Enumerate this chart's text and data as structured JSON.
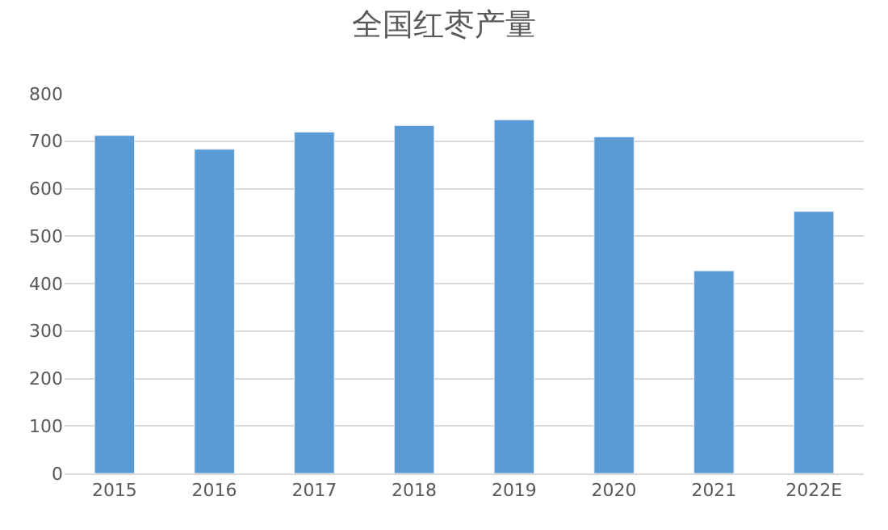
{
  "chart_data": {
    "type": "bar",
    "title": "全国红枣产量",
    "categories": [
      "2015",
      "2016",
      "2017",
      "2018",
      "2019",
      "2020",
      "2021",
      "2022E"
    ],
    "series": [
      {
        "color": "#5b9bd5",
        "values": [
          712,
          683,
          719,
          733,
          745,
          709,
          427,
          552
        ]
      }
    ],
    "ylim": [
      0,
      800
    ],
    "yticks": [
      0,
      100,
      200,
      300,
      400,
      500,
      600,
      700,
      800
    ],
    "grid": "y"
  }
}
